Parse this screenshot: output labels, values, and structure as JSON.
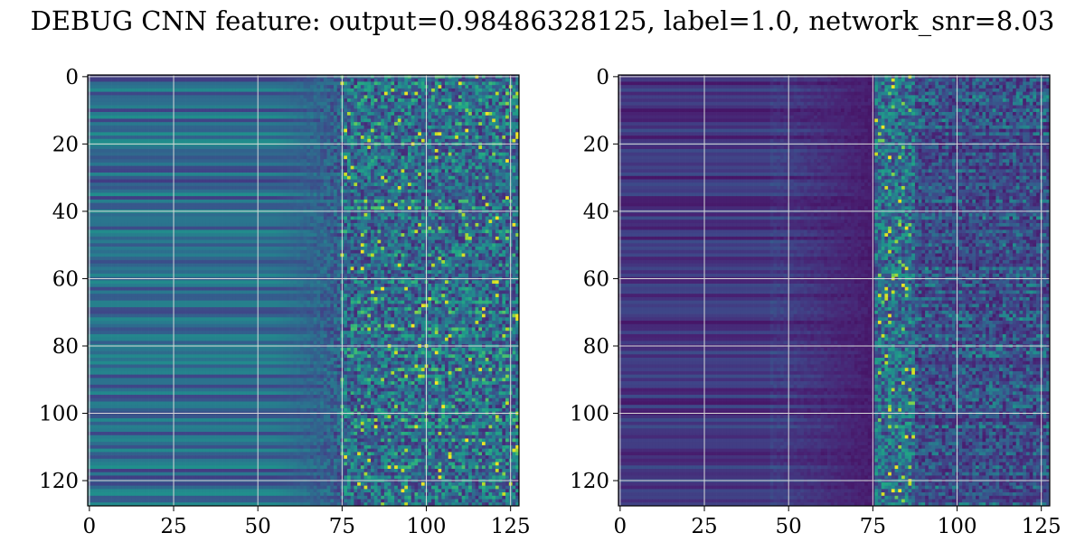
{
  "title": "DEBUG CNN feature: output=0.98486328125, label=1.0, network_snr=8.03",
  "chart_data": [
    {
      "type": "heatmap",
      "colormap": "viridis",
      "rows": 128,
      "cols": 128,
      "xlim": [
        0,
        127
      ],
      "ylim": [
        127,
        0
      ],
      "x_ticks": [
        0,
        25,
        50,
        75,
        100,
        125
      ],
      "y_ticks": [
        0,
        20,
        40,
        60,
        80,
        100,
        120
      ],
      "grid": true,
      "description_of_pattern": "horizontal stripes on left, noisy high-contrast speckle on right beyond x~75"
    },
    {
      "type": "heatmap",
      "colormap": "viridis",
      "rows": 128,
      "cols": 128,
      "xlim": [
        0,
        127
      ],
      "ylim": [
        127,
        0
      ],
      "x_ticks": [
        0,
        25,
        50,
        75,
        100,
        125
      ],
      "y_ticks": [
        0,
        20,
        40,
        60,
        80,
        100,
        120
      ],
      "grid": true,
      "description_of_pattern": "dark purple, bright speckle band around x~78-86"
    }
  ]
}
